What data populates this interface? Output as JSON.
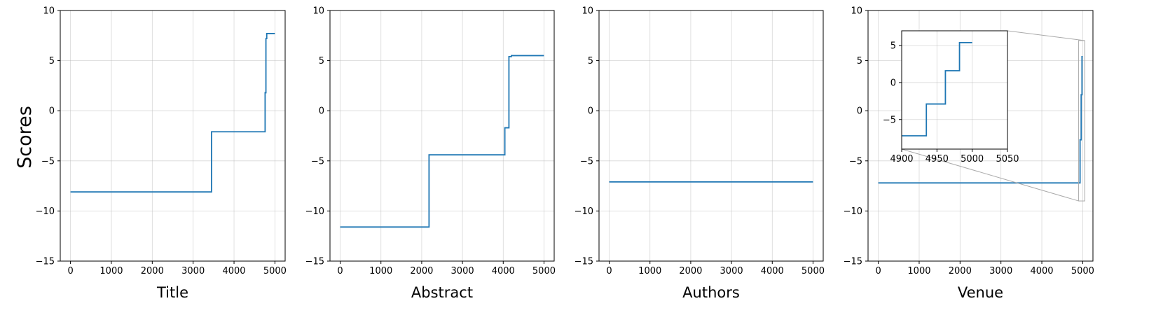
{
  "figure": {
    "ylabel": "Scores",
    "colors": {
      "series": "#1f77b4"
    }
  },
  "chart_data": [
    {
      "type": "line",
      "title": "",
      "xlabel": "Title",
      "ylabel": "Scores",
      "xlim": [
        -250,
        5250
      ],
      "ylim": [
        -15,
        10
      ],
      "xticks": [
        0,
        1000,
        2000,
        3000,
        4000,
        5000
      ],
      "yticks": [
        -15,
        -10,
        -5,
        0,
        5,
        10
      ],
      "grid": true,
      "series": [
        {
          "x": [
            0,
            3450,
            3450,
            4760,
            4760,
            4780,
            4780,
            4800,
            4800,
            5000
          ],
          "y": [
            -8.1,
            -8.1,
            -2.1,
            -2.1,
            1.8,
            1.8,
            7.2,
            7.2,
            7.7,
            7.7
          ]
        }
      ]
    },
    {
      "type": "line",
      "title": "",
      "xlabel": "Abstract",
      "ylim": [
        -15,
        10
      ],
      "xlim": [
        -250,
        5250
      ],
      "xticks": [
        0,
        1000,
        2000,
        3000,
        4000,
        5000
      ],
      "yticks": [
        -15,
        -10,
        -5,
        0,
        5,
        10
      ],
      "grid": true,
      "series": [
        {
          "x": [
            0,
            2180,
            2180,
            4040,
            4040,
            4140,
            4140,
            4200,
            4200,
            5000
          ],
          "y": [
            -11.6,
            -11.6,
            -4.4,
            -4.4,
            -1.7,
            -1.7,
            5.4,
            5.4,
            5.5,
            5.5
          ]
        }
      ]
    },
    {
      "type": "line",
      "title": "",
      "xlabel": "Authors",
      "ylim": [
        -15,
        10
      ],
      "xlim": [
        -250,
        5250
      ],
      "xticks": [
        0,
        1000,
        2000,
        3000,
        4000,
        5000
      ],
      "yticks": [
        -15,
        -10,
        -5,
        0,
        5,
        10
      ],
      "grid": true,
      "series": [
        {
          "x": [
            0,
            5000
          ],
          "y": [
            -7.1,
            -7.1
          ]
        }
      ]
    },
    {
      "type": "line",
      "title": "",
      "xlabel": "Venue",
      "ylim": [
        -15,
        10
      ],
      "xlim": [
        -250,
        5250
      ],
      "xticks": [
        0,
        1000,
        2000,
        3000,
        4000,
        5000
      ],
      "yticks": [
        -15,
        -10,
        -5,
        0,
        5,
        10
      ],
      "grid": true,
      "series": [
        {
          "x": [
            0,
            4935,
            4935,
            4962,
            4962,
            4982,
            4982,
            5000
          ],
          "y": [
            -7.2,
            -7.2,
            -2.9,
            -2.9,
            1.6,
            1.6,
            5.4,
            5.4
          ]
        }
      ],
      "inset": {
        "xlim": [
          4900,
          5050
        ],
        "ylim": [
          -9,
          7
        ],
        "xticks": [
          4900,
          4950,
          5000,
          5050
        ],
        "yticks": [
          -5,
          0,
          5
        ],
        "grid": true,
        "series": [
          {
            "x": [
              4900,
              4935,
              4935,
              4962,
              4962,
              4982,
              4982,
              5000
            ],
            "y": [
              -7.2,
              -7.2,
              -2.9,
              -2.9,
              1.6,
              1.6,
              5.4,
              5.4
            ]
          }
        ]
      }
    }
  ]
}
